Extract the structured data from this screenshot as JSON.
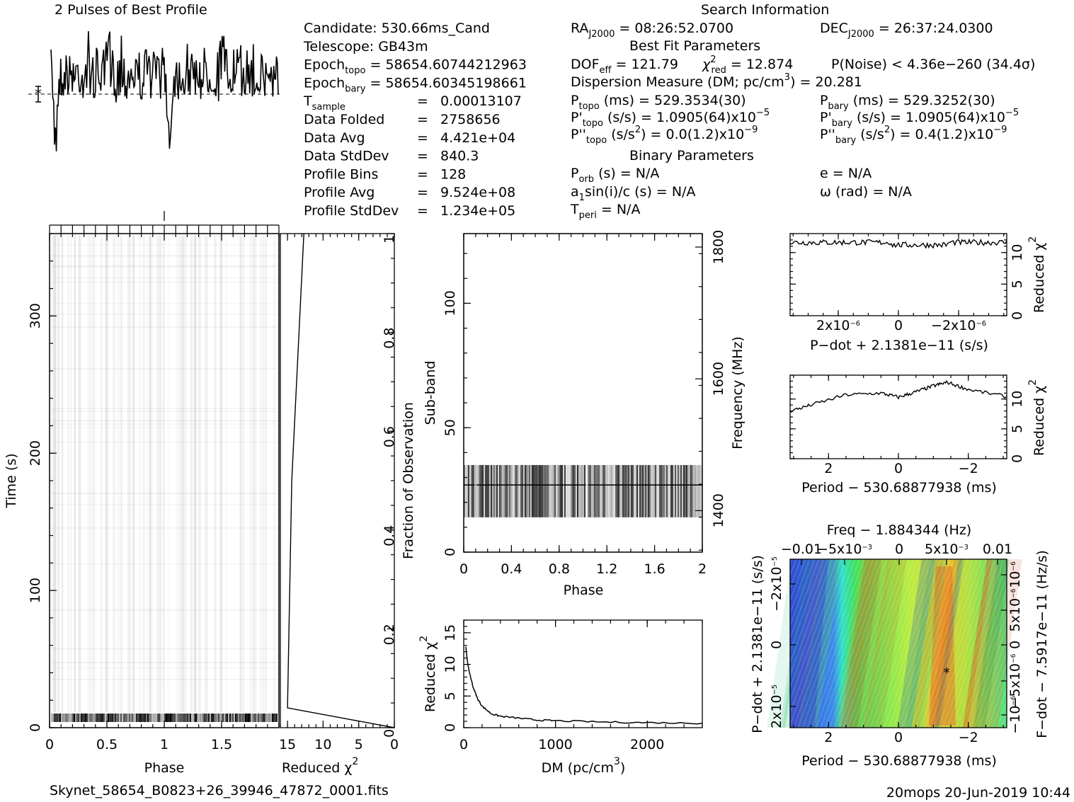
{
  "profile_title": "2 Pulses of Best Profile",
  "search_title": "Search Information",
  "info_left": [
    {
      "k": "Candidate:  530.66ms_Cand"
    },
    {
      "k": "Telescope:  GB43m"
    },
    {
      "k": "Epoch",
      "sub": "topo",
      "v": " = 58654.60744212963"
    },
    {
      "k": "Epoch",
      "sub": "bary",
      "v": " = 58654.60345198661"
    },
    {
      "k": "T",
      "sub": "sample",
      "eq": "=",
      "v": "0.00013107"
    },
    {
      "k": "Data Folded",
      "eq": "=",
      "v": "2758656"
    },
    {
      "k": "Data Avg",
      "eq": "=",
      "v": "4.421e+04"
    },
    {
      "k": "Data StdDev",
      "eq": "=",
      "v": "840.3"
    },
    {
      "k": "Profile Bins",
      "eq": "=",
      "v": "128"
    },
    {
      "k": "Profile Avg",
      "eq": "=",
      "v": "9.524e+08"
    },
    {
      "k": "Profile StdDev",
      "eq": "=",
      "v": "1.234e+05"
    }
  ],
  "info_right": {
    "ra": "RA",
    "ra_sub": "J2000",
    "ra_val": " = 08:26:52.0700",
    "dec": "DEC",
    "dec_sub": "J2000",
    "dec_val": " = 26:37:24.0300",
    "best_fit": "Best Fit Parameters",
    "dof": "DOF",
    "dof_sub": "eff",
    "dof_val": " = 121.79",
    "chi": "χ",
    "chi_sup": "2",
    "chi_sub": "red",
    "chi_val": " = 12.874",
    "pnoise": "P(Noise) < 4.36e−260   (34.4σ)",
    "dm": "Dispersion Measure (DM; pc/cm",
    "dm_sup": "3",
    "dm_val": ") = 20.281",
    "ptopo": "P",
    "ptopo_sub": "topo",
    "ptopo_val": " (ms) =  529.3534(30)",
    "pbary": "P",
    "pbary_sub": "bary",
    "pbary_val": " (ms) =  529.3252(30)",
    "pdtopo": "P'",
    "pdtopo_sub": "topo",
    "pdtopo_val": " (s/s) =  1.0905(64)x10",
    "pdtopo_exp": "−5",
    "pdbary": "P'",
    "pdbary_sub": "bary",
    "pdbary_val": " (s/s) =  1.0905(64)x10",
    "pdbary_exp": "−5",
    "pddtopo": "P''",
    "pddtopo_sub": "topo",
    "pddtopo_val": " (s/s",
    "pddtopo_sup": "2",
    "pddtopo_val2": ") = 0.0(1.2)x10",
    "pddtopo_exp": "−9",
    "pddbary": "P''",
    "pddbary_sub": "bary",
    "pddbary_val": " (s/s",
    "pddbary_sup": "2",
    "pddbary_val2": ") =  0.4(1.2)x10",
    "pddbary_exp": "−9",
    "binary": "Binary Parameters",
    "porb": "P",
    "porb_sub": "orb",
    "porb_val": " (s) = N/A",
    "ecc": "e = N/A",
    "a1": "a",
    "a1_sub": "1",
    "a1_val": "sin(i)/c (s) = N/A",
    "omega": "ω (rad) = N/A",
    "tperi": "T",
    "tperi_sub": "peri",
    "tperi_val": " = N/A"
  },
  "footer_file": "Skynet_58654_B0823+26_39946_47872_0001.fits",
  "footer_stamp": "20mops 20-Jun-2019 10:44",
  "chart_data": [
    {
      "id": "profile",
      "type": "line",
      "title": "2 Pulses of Best Profile",
      "xlim": [
        0,
        2
      ],
      "note": "two cycles of the folded pulse profile; no axes labels"
    },
    {
      "id": "time_phase",
      "type": "heatmap",
      "xlabel": "Phase",
      "ylabel": "Time (s)",
      "xlim": [
        0,
        2
      ],
      "ylim": [
        0,
        360
      ],
      "x_ticks": [
        "0",
        "0.5",
        "1",
        "1.5"
      ],
      "y_ticks": [
        "0",
        "100",
        "200",
        "300"
      ]
    },
    {
      "id": "time_chi2",
      "type": "line",
      "xlabel": "Reduced χ",
      "xlabel_sup": "2",
      "ylabel_right": "Fraction of Observation",
      "xlim": [
        16,
        0
      ],
      "ylim": [
        0,
        1
      ],
      "x_ticks": [
        "15",
        "10",
        "5",
        "0"
      ],
      "y_ticks": [
        "0",
        "0.2",
        "0.4",
        "0.6",
        "0.8",
        "1"
      ],
      "x": [
        0,
        15.0,
        14.4,
        12.7
      ],
      "y": [
        0.0,
        0.04,
        0.5,
        1.0
      ]
    },
    {
      "id": "subband_phase",
      "type": "heatmap",
      "xlabel": "Phase",
      "ylabel": "Sub-band",
      "ylabel_right": "Frequency (MHz)",
      "xlim": [
        0,
        2
      ],
      "ylim": [
        0,
        128
      ],
      "x_ticks": [
        "0",
        "0.4",
        "0.8",
        "1.2",
        "1.6",
        "2"
      ],
      "y_ticks": [
        "0",
        "50",
        "100"
      ],
      "y_right_ticks": [
        "1400",
        "1600",
        "1800"
      ],
      "band_subbands": [
        14,
        35
      ]
    },
    {
      "id": "dm_chi2",
      "type": "line",
      "xlabel": "DM (pc/cm",
      "xlabel_sup": "3",
      "xlabel_end": ")",
      "ylabel": "Reduced χ",
      "ylabel_sup": "2",
      "xlim": [
        0,
        2600
      ],
      "ylim": [
        0,
        17
      ],
      "x_ticks": [
        "0",
        "1000",
        "2000"
      ],
      "y_ticks": [
        "0",
        "5",
        "10",
        "15"
      ],
      "x": [
        20,
        50,
        100,
        150,
        200,
        300,
        400,
        600,
        800,
        1000,
        1500,
        2000,
        2600
      ],
      "y": [
        12.9,
        9.5,
        6.5,
        4.6,
        3.4,
        2.2,
        1.8,
        1.5,
        1.2,
        1.1,
        0.9,
        0.8,
        0.7
      ]
    },
    {
      "id": "pdot_chi2",
      "type": "line",
      "xlabel": "P−dot + 2.1381e−11 (s/s)",
      "ylabel_right": "Reduced χ",
      "ylabel_sup": "2",
      "xlim": [
        3.6e-06,
        -3.6e-06
      ],
      "ylim": [
        0,
        13
      ],
      "x_ticks": [
        "2x10",
        "0",
        "−2x10"
      ],
      "x_tick_exp": [
        "−6",
        "",
        "−6"
      ],
      "y_ticks": [
        "0",
        "5",
        "10"
      ],
      "level": 11.6
    },
    {
      "id": "period_chi2",
      "type": "line",
      "xlabel": "Period − 530.68877938 (ms)",
      "ylabel_right": "Reduced χ",
      "ylabel_sup": "2",
      "xlim": [
        3.1,
        -3.1
      ],
      "ylim": [
        0,
        14
      ],
      "x_ticks": [
        "2",
        "0",
        "−2"
      ],
      "y_ticks": [
        "0",
        "5",
        "10"
      ],
      "x": [
        3.1,
        2.5,
        1.5,
        0.5,
        0.0,
        -0.5,
        -1.0,
        -1.4,
        -2.0,
        -3.1
      ],
      "y": [
        8.0,
        9.0,
        10.7,
        11.0,
        10.3,
        11.2,
        12.2,
        12.8,
        11.6,
        10.4
      ]
    },
    {
      "id": "pp_dot_plane",
      "type": "heatmap",
      "title": "Freq − 1.884344 (Hz)",
      "xlabel": "Period − 530.68877938 (ms)",
      "ylabel": "P−dot + 2.1381e−11 (s/s)",
      "ylabel_right": "F−dot − 7.5917e−11 (Hz/s)",
      "xlim": [
        3.1,
        -3.1
      ],
      "x_ticks": [
        "2",
        "0",
        "−2"
      ],
      "top_ticks": [
        "−0.01",
        "−5x10",
        "0",
        "5x10",
        "0.01"
      ],
      "top_tick_exp": [
        "",
        "−3",
        "",
        "−3",
        ""
      ],
      "left_ticks": [
        "2x10",
        "0",
        "−2x10"
      ],
      "left_tick_exp": [
        "−5",
        "",
        "−5"
      ],
      "right_ticks": [
        "−10",
        "−5x10",
        "0",
        "5x10",
        "10"
      ],
      "right_tick_exp": [
        "−6",
        "−6",
        "",
        "−6",
        "−6"
      ],
      "best_marker": "*"
    }
  ]
}
